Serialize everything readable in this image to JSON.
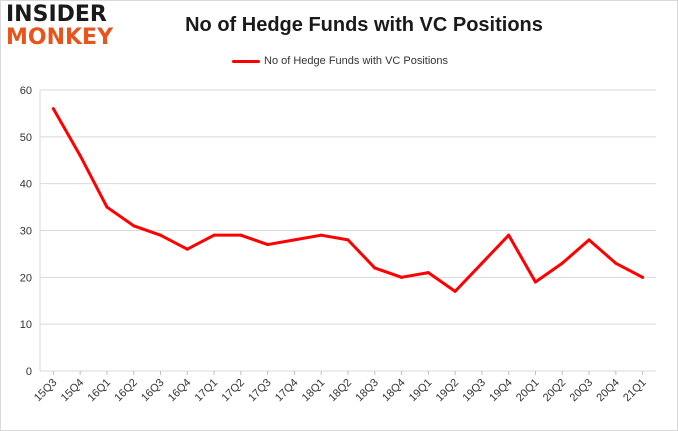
{
  "brand": {
    "line1": "INSIDER",
    "line2": "MONKEY"
  },
  "colors": {
    "series": "#ff0000",
    "grid": "#d9d9d9",
    "brand_orange": "#e8541c"
  },
  "chart_data": {
    "type": "line",
    "title": "No of Hedge Funds with VC Positions",
    "xlabel": "",
    "ylabel": "",
    "legend_position": "top",
    "grid": true,
    "ylim": [
      0,
      60
    ],
    "yticks": [
      0,
      10,
      20,
      30,
      40,
      50,
      60
    ],
    "categories": [
      "15Q3",
      "15Q4",
      "16Q1",
      "16Q2",
      "16Q3",
      "16Q4",
      "17Q1",
      "17Q2",
      "17Q3",
      "17Q4",
      "18Q1",
      "18Q2",
      "18Q3",
      "18Q4",
      "19Q1",
      "19Q2",
      "19Q3",
      "19Q4",
      "20Q1",
      "20Q2",
      "20Q3",
      "20Q4",
      "21Q1"
    ],
    "series": [
      {
        "name": "No of Hedge Funds with VC Positions",
        "values": [
          56,
          46,
          35,
          31,
          29,
          26,
          29,
          29,
          27,
          28,
          29,
          28,
          22,
          20,
          21,
          17,
          23,
          29,
          19,
          23,
          28,
          23,
          20
        ]
      }
    ]
  }
}
